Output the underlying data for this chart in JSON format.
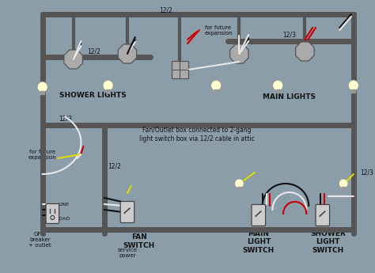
{
  "bg_color": "#8c9daa",
  "wire_gray": "#555555",
  "wire_black": "#111111",
  "wire_white": "#e8e8e8",
  "wire_red": "#cc0000",
  "wire_yellow": "#dddd00",
  "bulb_fill": "#ffffd0",
  "bulb_outline": "#999999",
  "box_fill": "#aaaaaa",
  "box_edge": "#555555",
  "switch_fill": "#cccccc",
  "switch_edge": "#444444",
  "text_dark": "#111111",
  "lw_thick": 5,
  "lw_med": 3,
  "lw_thin": 1.5,
  "lw_hair": 1.0,
  "labels": {
    "shower_lights": "SHOWER LIGHTS",
    "main_lights": "MAIN LIGHTS",
    "fan_switch": "FAN\nSWITCH",
    "main_light_switch": "MAIN\nLIGHT\nSWITCH",
    "shower_light_switch": "SHOWER\nLIGHT\nSWITCH",
    "gfci": "GFCI\nbreaker\n+ outlet",
    "service_power": "service\npower",
    "for_future_exp_top": "for future\nexpansion",
    "for_future_exp_left": "for future\nexpansion",
    "fan_outlet_note": "Fan/Outlet box connected to 2-gang\nlight switch box via 12/2 cable in attic",
    "t122": "12/2",
    "t123": "12/3",
    "line_lbl": "LINE",
    "load_lbl": "LOAD"
  }
}
